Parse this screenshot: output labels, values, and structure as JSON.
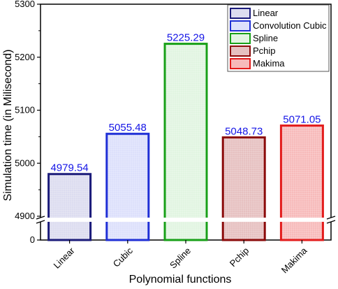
{
  "chart_data": {
    "type": "bar",
    "xlabel": "Polynomial functions",
    "ylabel": "Simulation time (in Milisecond)",
    "categories": [
      "Linear",
      "Cubic",
      "Spline",
      "Pchip",
      "Makima"
    ],
    "values": [
      4979.54,
      5055.48,
      5225.29,
      5048.73,
      5071.05
    ],
    "data_labels": [
      "4979.54",
      "5055.48",
      "5225.29",
      "5048.73",
      "5071.05"
    ],
    "y_axis_break": true,
    "ylim_lower_segment": [
      0,
      30
    ],
    "ylim_upper_segment": [
      4900,
      5300
    ],
    "yticks_upper": [
      "4900",
      "5000",
      "5100",
      "5200",
      "5300"
    ],
    "yticks_lower": [
      "0"
    ],
    "legend": {
      "placement": "top-right",
      "entries": [
        "Linear",
        "Convolution Cubic",
        "Spline",
        "Pchip",
        "Makima"
      ]
    },
    "colors": {
      "edges": [
        "#1b1b7a",
        "#1f2fd6",
        "#18a018",
        "#8b0a0a",
        "#e31c1c"
      ],
      "fills": [
        "#dcdcf0",
        "#dde0fb",
        "#e1f5e1",
        "#e6c0c0",
        "#f7baba"
      ],
      "data_label": "#1515e6"
    },
    "grid": false
  }
}
